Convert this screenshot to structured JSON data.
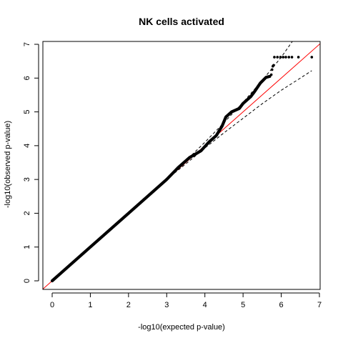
{
  "chart_data": {
    "type": "scatter",
    "title": "NK cells activated",
    "xlabel": "-log10(expected p-value)",
    "ylabel": "-log10(observed p-value)",
    "xlim": [
      0,
      7
    ],
    "ylim": [
      0,
      7
    ],
    "x_ticks": [
      "0",
      "1",
      "2",
      "3",
      "4",
      "5",
      "6",
      "7"
    ],
    "y_ticks": [
      "0",
      "1",
      "2",
      "3",
      "4",
      "5",
      "6",
      "7"
    ],
    "grid": false,
    "legend": "none",
    "point_color": "#000000",
    "reference_line": {
      "slope": 1,
      "intercept": 0,
      "color": "#ff0000"
    },
    "confidence_bands": {
      "style": "dashed",
      "color": "#000000",
      "upper": [
        [
          3.0,
          3.0
        ],
        [
          3.5,
          3.55
        ],
        [
          4.0,
          4.1
        ],
        [
          4.5,
          4.68
        ],
        [
          5.0,
          5.28
        ],
        [
          5.5,
          5.93
        ],
        [
          6.0,
          6.62
        ],
        [
          6.3,
          7.1
        ]
      ],
      "lower": [
        [
          3.0,
          3.0
        ],
        [
          3.5,
          3.46
        ],
        [
          4.0,
          3.93
        ],
        [
          4.5,
          4.38
        ],
        [
          5.0,
          4.81
        ],
        [
          5.5,
          5.24
        ],
        [
          6.0,
          5.64
        ],
        [
          6.5,
          6.0
        ],
        [
          6.8,
          6.22
        ]
      ]
    },
    "segments": [
      [
        0.0,
        0.0
      ],
      [
        1.0,
        1.0
      ],
      [
        2.0,
        2.0
      ],
      [
        3.0,
        3.0
      ],
      [
        3.3,
        3.35
      ],
      [
        3.6,
        3.65
      ],
      [
        3.9,
        3.85
      ],
      [
        4.1,
        4.1
      ],
      [
        4.3,
        4.3
      ],
      [
        4.45,
        4.58
      ],
      [
        4.55,
        4.85
      ],
      [
        4.7,
        5.0
      ],
      [
        4.9,
        5.1
      ],
      [
        5.0,
        5.25
      ],
      [
        5.2,
        5.45
      ],
      [
        5.3,
        5.6
      ],
      [
        5.45,
        5.85
      ],
      [
        5.6,
        6.02
      ],
      [
        5.7,
        6.05
      ]
    ],
    "points": [
      [
        5.74,
        6.1
      ],
      [
        5.76,
        6.25
      ],
      [
        5.78,
        6.35
      ],
      [
        5.8,
        6.38
      ],
      [
        5.82,
        6.62
      ],
      [
        5.9,
        6.62
      ],
      [
        5.98,
        6.62
      ],
      [
        6.05,
        6.62
      ],
      [
        6.12,
        6.62
      ],
      [
        6.2,
        6.62
      ],
      [
        6.28,
        6.62
      ],
      [
        6.45,
        6.62
      ],
      [
        6.8,
        6.62
      ]
    ]
  }
}
